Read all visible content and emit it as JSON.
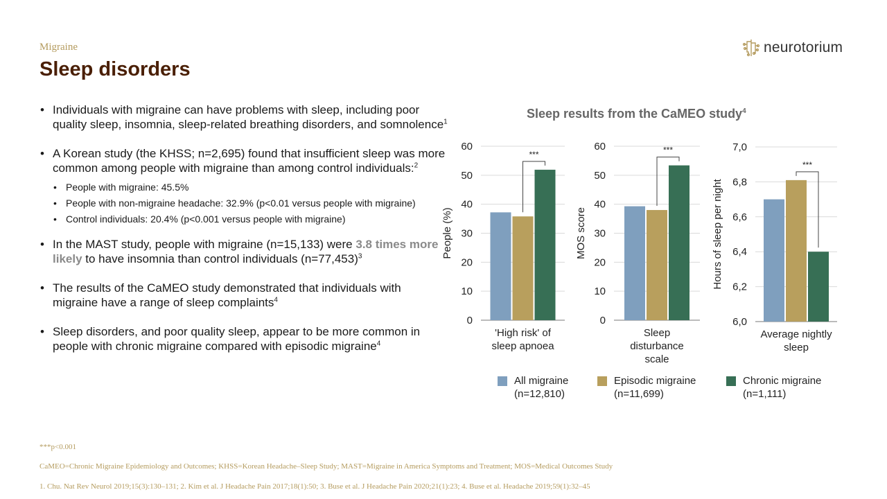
{
  "header": {
    "breadcrumb": "Migraine",
    "title": "Sleep disorders",
    "logo_text": "neurotorium"
  },
  "bullets": {
    "b1": "Individuals with migraine can have problems with sleep, including poor quality sleep, insomnia, sleep-related breathing disorders, and somnolence",
    "b1_ref": "1",
    "b2": "A Korean study (the KHSS; n=2,695) found that insufficient sleep was more common among people with migraine than among control individuals:",
    "b2_ref": "2",
    "b2_subs": [
      "People with migraine: 45.5%",
      "People with non-migraine headache: 32.9% (p<0.01 versus people with migraine)",
      "Control individuals: 20.4% (p<0.001 versus people with migraine)"
    ],
    "b3_pre": "In the MAST study, people with migraine (n=15,133) were ",
    "b3_highlight": "3.8 times more likely",
    "b3_post": " to have insomnia than control individuals (n=77,453)",
    "b3_ref": "3",
    "b4": "The results of the CaMEO study demonstrated that individuals with migraine have a range of sleep complaints",
    "b4_ref": "4",
    "b5": "Sleep disorders, and poor quality sleep, appear to be more common in people with chronic migraine compared with episodic migraine",
    "b5_ref": "4"
  },
  "footer": {
    "pvalue": "***p<0.001",
    "abbreviations": "CaMEO=Chronic Migraine Epidemiology and Outcomes; KHSS=Korean Headache–Sleep Study; MAST=Migraine in America Symptoms and Treatment; MOS=Medical Outcomes Study",
    "references": "1. Chu. Nat Rev Neurol 2019;15(3):130–131; 2. Kim et al. J Headache Pain 2017;18(1):50; 3. Buse et al. J Headache Pain 2020;21(1):23; 4. Buse et al. Headache 2019;59(1):32–45"
  },
  "chart_title": "Sleep results from the CaMEO study",
  "chart_title_ref": "4",
  "legend": [
    {
      "line1": "All migraine",
      "line2": "(n=12,810)",
      "color": "#7f9fbe"
    },
    {
      "line1": "Episodic migraine",
      "line2": "(n=11,699)",
      "color": "#b89f5d"
    },
    {
      "line1": "Chronic migraine",
      "line2": "(n=1,111)",
      "color": "#376f55"
    }
  ],
  "chart_data": [
    {
      "type": "bar",
      "ylabel": "People (%)",
      "xlabel_lines": [
        "'High risk' of",
        "sleep apnoea"
      ],
      "ylim": [
        0,
        60
      ],
      "ticks": [
        "0",
        "10",
        "20",
        "30",
        "40",
        "50",
        "60"
      ],
      "tick_values": [
        0,
        10,
        20,
        30,
        40,
        50,
        60
      ],
      "series": [
        {
          "name": "All migraine",
          "value": 37.2
        },
        {
          "name": "Episodic migraine",
          "value": 35.8
        },
        {
          "name": "Chronic migraine",
          "value": 51.9
        }
      ],
      "significance": "***"
    },
    {
      "type": "bar",
      "ylabel": "MOS score",
      "xlabel_lines": [
        "Sleep",
        "disturbance",
        "scale"
      ],
      "ylim": [
        0,
        60
      ],
      "ticks": [
        "0",
        "10",
        "20",
        "30",
        "40",
        "50",
        "60"
      ],
      "tick_values": [
        0,
        10,
        20,
        30,
        40,
        50,
        60
      ],
      "series": [
        {
          "name": "All migraine",
          "value": 39.3
        },
        {
          "name": "Episodic migraine",
          "value": 38.0
        },
        {
          "name": "Chronic migraine",
          "value": 53.4
        }
      ],
      "significance": "***"
    },
    {
      "type": "bar",
      "ylabel": "Hours of sleep per night",
      "xlabel_lines": [
        "Average nightly",
        "sleep"
      ],
      "ylim": [
        6.0,
        7.0
      ],
      "ticks": [
        "6,0",
        "6,2",
        "6,4",
        "6,6",
        "6,8",
        "7,0"
      ],
      "tick_values": [
        6.0,
        6.2,
        6.4,
        6.6,
        6.8,
        7.0
      ],
      "series": [
        {
          "name": "All migraine",
          "value": 6.7
        },
        {
          "name": "Episodic migraine",
          "value": 6.81
        },
        {
          "name": "Chronic migraine",
          "value": 6.4
        }
      ],
      "significance": "***"
    }
  ]
}
